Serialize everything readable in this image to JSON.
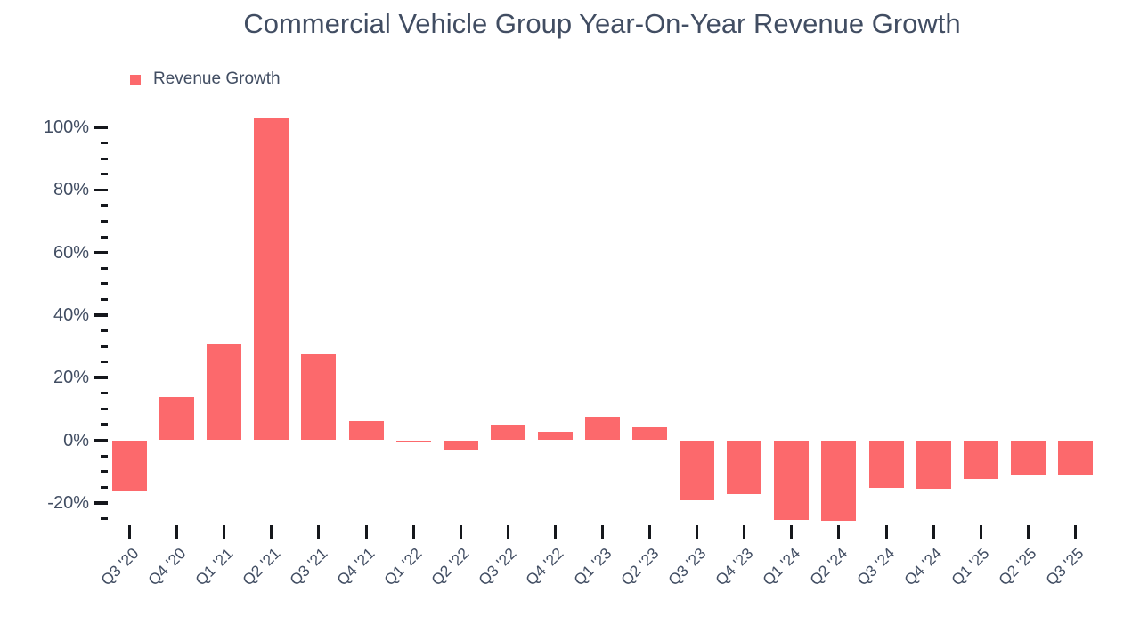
{
  "header": {
    "title": "Commercial Vehicle Group Year-On-Year Revenue Growth"
  },
  "legend": {
    "label": "Revenue Growth",
    "swatch_color": "#FC696C"
  },
  "colors": {
    "bar": "#FC696C",
    "text": "#414D62",
    "tick": "#15171C",
    "background": "#FFFFFF"
  },
  "chart_data": {
    "type": "bar",
    "title": "Commercial Vehicle Group Year-On-Year Revenue Growth",
    "series_name": "Revenue Growth",
    "categories": [
      "Q3 '20",
      "Q4 '20",
      "Q1 '21",
      "Q2 '21",
      "Q3 '21",
      "Q4 '21",
      "Q1 '22",
      "Q2 '22",
      "Q3 '22",
      "Q4 '22",
      "Q1 '23",
      "Q2 '23",
      "Q3 '23",
      "Q4 '23",
      "Q1 '24",
      "Q2 '24",
      "Q3 '24",
      "Q4 '24",
      "Q1 '25",
      "Q2 '25",
      "Q3 '25"
    ],
    "values": [
      -16.5,
      13.9,
      30.9,
      102.8,
      27.6,
      6.0,
      -0.6,
      -3.1,
      5.0,
      2.6,
      7.5,
      4.1,
      -19.2,
      -17.2,
      -25.6,
      -25.7,
      -15.3,
      -15.5,
      -12.4,
      -11.1,
      -11.3
    ],
    "xlabel": "",
    "ylabel": "",
    "unit": "%",
    "ylim": [
      -27,
      104
    ],
    "grid": false,
    "legend_position": "top-left",
    "y_axis": {
      "tick_labels": [
        "100%",
        "80%",
        "60%",
        "40%",
        "20%",
        "0%",
        "-20%"
      ],
      "max": 100,
      "min": -25,
      "major_step": 20,
      "minor_step": 5
    }
  }
}
